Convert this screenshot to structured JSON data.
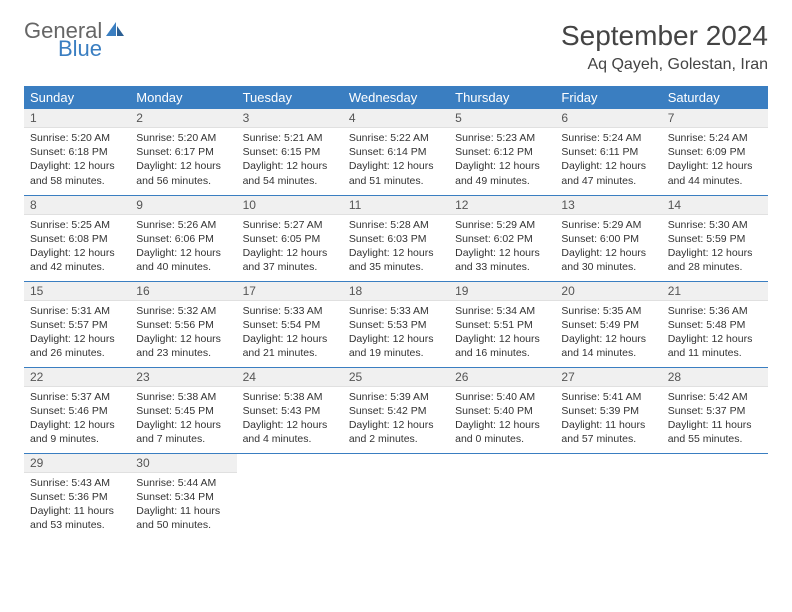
{
  "logo": {
    "text1": "General",
    "text2": "Blue"
  },
  "title": "September 2024",
  "location": "Aq Qayeh, Golestan, Iran",
  "colors": {
    "header_bg": "#3a7ec1",
    "header_fg": "#ffffff",
    "daynum_bg": "#f0f0f0",
    "rule": "#3a7ec1",
    "text": "#333333",
    "logo_gray": "#666666",
    "logo_blue": "#3a7ec1"
  },
  "weekdays": [
    "Sunday",
    "Monday",
    "Tuesday",
    "Wednesday",
    "Thursday",
    "Friday",
    "Saturday"
  ],
  "days": [
    {
      "n": 1,
      "sr": "5:20 AM",
      "ss": "6:18 PM",
      "dl": "12 hours and 58 minutes."
    },
    {
      "n": 2,
      "sr": "5:20 AM",
      "ss": "6:17 PM",
      "dl": "12 hours and 56 minutes."
    },
    {
      "n": 3,
      "sr": "5:21 AM",
      "ss": "6:15 PM",
      "dl": "12 hours and 54 minutes."
    },
    {
      "n": 4,
      "sr": "5:22 AM",
      "ss": "6:14 PM",
      "dl": "12 hours and 51 minutes."
    },
    {
      "n": 5,
      "sr": "5:23 AM",
      "ss": "6:12 PM",
      "dl": "12 hours and 49 minutes."
    },
    {
      "n": 6,
      "sr": "5:24 AM",
      "ss": "6:11 PM",
      "dl": "12 hours and 47 minutes."
    },
    {
      "n": 7,
      "sr": "5:24 AM",
      "ss": "6:09 PM",
      "dl": "12 hours and 44 minutes."
    },
    {
      "n": 8,
      "sr": "5:25 AM",
      "ss": "6:08 PM",
      "dl": "12 hours and 42 minutes."
    },
    {
      "n": 9,
      "sr": "5:26 AM",
      "ss": "6:06 PM",
      "dl": "12 hours and 40 minutes."
    },
    {
      "n": 10,
      "sr": "5:27 AM",
      "ss": "6:05 PM",
      "dl": "12 hours and 37 minutes."
    },
    {
      "n": 11,
      "sr": "5:28 AM",
      "ss": "6:03 PM",
      "dl": "12 hours and 35 minutes."
    },
    {
      "n": 12,
      "sr": "5:29 AM",
      "ss": "6:02 PM",
      "dl": "12 hours and 33 minutes."
    },
    {
      "n": 13,
      "sr": "5:29 AM",
      "ss": "6:00 PM",
      "dl": "12 hours and 30 minutes."
    },
    {
      "n": 14,
      "sr": "5:30 AM",
      "ss": "5:59 PM",
      "dl": "12 hours and 28 minutes."
    },
    {
      "n": 15,
      "sr": "5:31 AM",
      "ss": "5:57 PM",
      "dl": "12 hours and 26 minutes."
    },
    {
      "n": 16,
      "sr": "5:32 AM",
      "ss": "5:56 PM",
      "dl": "12 hours and 23 minutes."
    },
    {
      "n": 17,
      "sr": "5:33 AM",
      "ss": "5:54 PM",
      "dl": "12 hours and 21 minutes."
    },
    {
      "n": 18,
      "sr": "5:33 AM",
      "ss": "5:53 PM",
      "dl": "12 hours and 19 minutes."
    },
    {
      "n": 19,
      "sr": "5:34 AM",
      "ss": "5:51 PM",
      "dl": "12 hours and 16 minutes."
    },
    {
      "n": 20,
      "sr": "5:35 AM",
      "ss": "5:49 PM",
      "dl": "12 hours and 14 minutes."
    },
    {
      "n": 21,
      "sr": "5:36 AM",
      "ss": "5:48 PM",
      "dl": "12 hours and 11 minutes."
    },
    {
      "n": 22,
      "sr": "5:37 AM",
      "ss": "5:46 PM",
      "dl": "12 hours and 9 minutes."
    },
    {
      "n": 23,
      "sr": "5:38 AM",
      "ss": "5:45 PM",
      "dl": "12 hours and 7 minutes."
    },
    {
      "n": 24,
      "sr": "5:38 AM",
      "ss": "5:43 PM",
      "dl": "12 hours and 4 minutes."
    },
    {
      "n": 25,
      "sr": "5:39 AM",
      "ss": "5:42 PM",
      "dl": "12 hours and 2 minutes."
    },
    {
      "n": 26,
      "sr": "5:40 AM",
      "ss": "5:40 PM",
      "dl": "12 hours and 0 minutes."
    },
    {
      "n": 27,
      "sr": "5:41 AM",
      "ss": "5:39 PM",
      "dl": "11 hours and 57 minutes."
    },
    {
      "n": 28,
      "sr": "5:42 AM",
      "ss": "5:37 PM",
      "dl": "11 hours and 55 minutes."
    },
    {
      "n": 29,
      "sr": "5:43 AM",
      "ss": "5:36 PM",
      "dl": "11 hours and 53 minutes."
    },
    {
      "n": 30,
      "sr": "5:44 AM",
      "ss": "5:34 PM",
      "dl": "11 hours and 50 minutes."
    }
  ],
  "labels": {
    "sunrise": "Sunrise:",
    "sunset": "Sunset:",
    "daylight": "Daylight:"
  },
  "layout": {
    "start_weekday": 0,
    "trailing_blanks": 5
  }
}
